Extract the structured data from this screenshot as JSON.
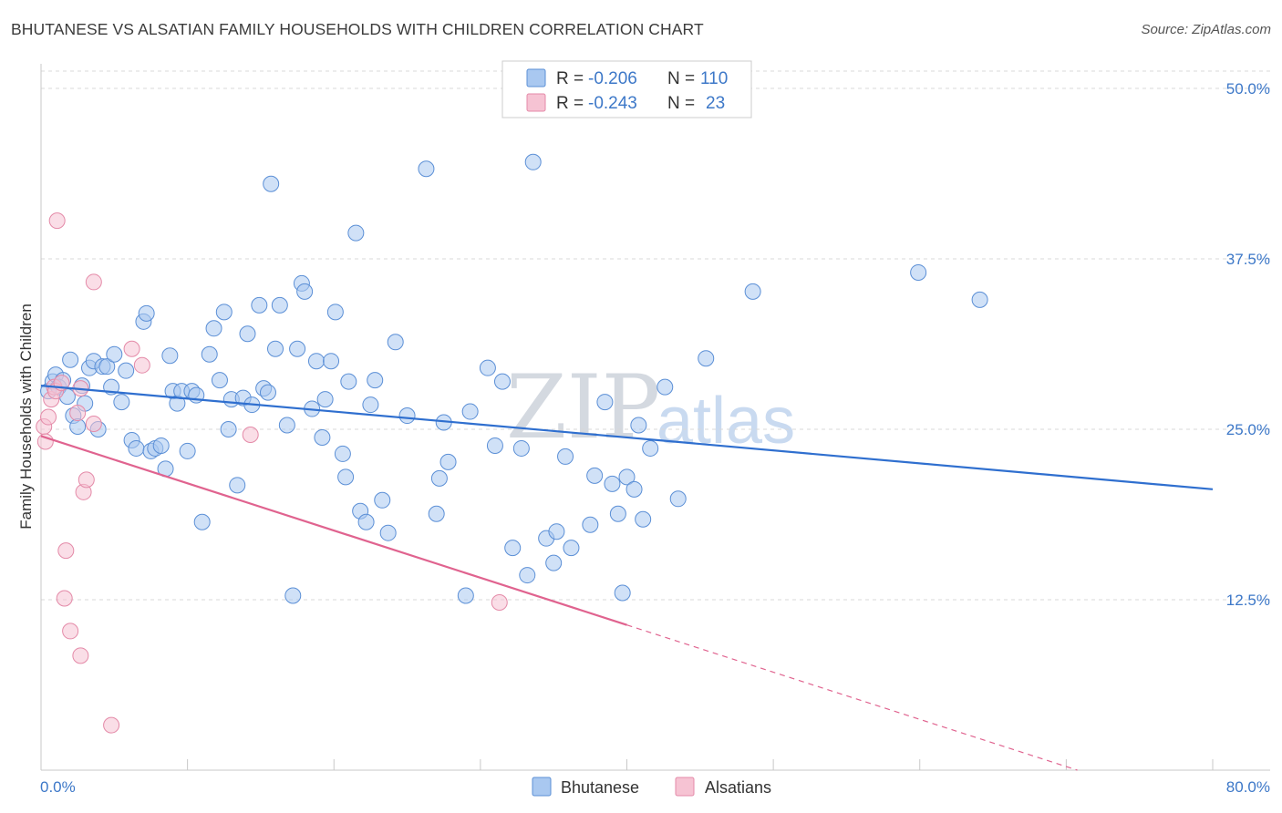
{
  "title": "BHUTANESE VS ALSATIAN FAMILY HOUSEHOLDS WITH CHILDREN CORRELATION CHART",
  "source": "Source: ZipAtlas.com",
  "watermark": {
    "zip": "ZIP",
    "atlas": "atlas"
  },
  "colors": {
    "blue_fill": "#a9c8f0",
    "blue_stroke": "#5b8fd6",
    "blue_line": "#2f6fcf",
    "pink_fill": "#f6c3d3",
    "pink_stroke": "#e48aa8",
    "pink_line": "#e0638f",
    "tick_text": "#3d78c8",
    "grid": "#d8d8d8"
  },
  "legend": {
    "r_label": "R =",
    "n_label": "N =",
    "rows": [
      {
        "r": "-0.206",
        "n": "110"
      },
      {
        "r": "-0.243",
        "n": "23"
      }
    ]
  },
  "chart_data": {
    "type": "scatter",
    "title": "BHUTANESE VS ALSATIAN FAMILY HOUSEHOLDS WITH CHILDREN CORRELATION CHART",
    "xlabel": "",
    "ylabel": "Family Households with Children",
    "xlim": [
      0,
      80
    ],
    "ylim": [
      0,
      52
    ],
    "x_tick_labels": [
      "0.0%",
      "80.0%"
    ],
    "y_ticks": [
      12.5,
      25.0,
      37.5,
      50.0
    ],
    "y_tick_labels": [
      "12.5%",
      "25.0%",
      "37.5%",
      "50.0%"
    ],
    "legend_position": "top-center",
    "series": [
      {
        "name": "Bhutanese",
        "R": -0.206,
        "N": 110,
        "trend": {
          "x0": 0,
          "y0": 28.2,
          "x1": 80,
          "y1": 20.6,
          "solid_until": 80
        },
        "points": [
          [
            0.5,
            27.8
          ],
          [
            0.8,
            28.5
          ],
          [
            1.0,
            29.0
          ],
          [
            1.2,
            28.1
          ],
          [
            1.5,
            28.6
          ],
          [
            1.8,
            27.4
          ],
          [
            2.0,
            30.1
          ],
          [
            2.2,
            26.0
          ],
          [
            2.5,
            25.2
          ],
          [
            2.8,
            28.2
          ],
          [
            3.0,
            26.9
          ],
          [
            3.3,
            29.5
          ],
          [
            3.6,
            30.0
          ],
          [
            3.9,
            25.0
          ],
          [
            4.2,
            29.6
          ],
          [
            4.5,
            29.6
          ],
          [
            4.8,
            28.1
          ],
          [
            5.0,
            30.5
          ],
          [
            5.5,
            27.0
          ],
          [
            5.8,
            29.3
          ],
          [
            6.2,
            24.2
          ],
          [
            6.5,
            23.6
          ],
          [
            7.0,
            32.9
          ],
          [
            7.2,
            33.5
          ],
          [
            7.5,
            23.4
          ],
          [
            7.8,
            23.6
          ],
          [
            8.2,
            23.8
          ],
          [
            8.5,
            22.1
          ],
          [
            8.8,
            30.4
          ],
          [
            9.0,
            27.8
          ],
          [
            9.3,
            26.9
          ],
          [
            9.6,
            27.8
          ],
          [
            10.0,
            23.4
          ],
          [
            10.3,
            27.8
          ],
          [
            10.6,
            27.5
          ],
          [
            11.0,
            18.2
          ],
          [
            11.5,
            30.5
          ],
          [
            11.8,
            32.4
          ],
          [
            12.2,
            28.6
          ],
          [
            12.5,
            33.6
          ],
          [
            12.8,
            25.0
          ],
          [
            13.0,
            27.2
          ],
          [
            13.4,
            20.9
          ],
          [
            13.8,
            27.3
          ],
          [
            14.1,
            32.0
          ],
          [
            14.4,
            26.8
          ],
          [
            14.9,
            34.1
          ],
          [
            15.2,
            28.0
          ],
          [
            15.5,
            27.7
          ],
          [
            15.7,
            43.0
          ],
          [
            16.0,
            30.9
          ],
          [
            16.3,
            34.1
          ],
          [
            16.8,
            25.3
          ],
          [
            17.2,
            12.8
          ],
          [
            17.5,
            30.9
          ],
          [
            17.8,
            35.7
          ],
          [
            18.0,
            35.1
          ],
          [
            18.5,
            26.5
          ],
          [
            18.8,
            30.0
          ],
          [
            19.2,
            24.4
          ],
          [
            19.4,
            27.2
          ],
          [
            19.8,
            30.0
          ],
          [
            20.1,
            33.6
          ],
          [
            20.6,
            23.2
          ],
          [
            20.8,
            21.5
          ],
          [
            21.0,
            28.5
          ],
          [
            21.5,
            39.4
          ],
          [
            21.8,
            19.0
          ],
          [
            22.2,
            18.2
          ],
          [
            22.5,
            26.8
          ],
          [
            22.8,
            28.6
          ],
          [
            23.3,
            19.8
          ],
          [
            23.7,
            17.4
          ],
          [
            24.2,
            31.4
          ],
          [
            25.0,
            26.0
          ],
          [
            26.3,
            44.1
          ],
          [
            27.0,
            18.8
          ],
          [
            27.2,
            21.4
          ],
          [
            27.5,
            25.5
          ],
          [
            27.8,
            22.6
          ],
          [
            29.0,
            12.8
          ],
          [
            29.3,
            26.3
          ],
          [
            30.5,
            29.5
          ],
          [
            31.0,
            23.8
          ],
          [
            31.5,
            28.5
          ],
          [
            32.2,
            16.3
          ],
          [
            32.8,
            23.6
          ],
          [
            33.2,
            14.3
          ],
          [
            33.6,
            44.6
          ],
          [
            34.5,
            17.0
          ],
          [
            35.0,
            15.2
          ],
          [
            35.2,
            17.5
          ],
          [
            35.8,
            23.0
          ],
          [
            36.2,
            16.3
          ],
          [
            37.5,
            18.0
          ],
          [
            37.8,
            21.6
          ],
          [
            38.5,
            27.0
          ],
          [
            39.0,
            21.0
          ],
          [
            39.4,
            18.8
          ],
          [
            39.7,
            13.0
          ],
          [
            40.0,
            21.5
          ],
          [
            40.5,
            20.6
          ],
          [
            40.8,
            25.3
          ],
          [
            41.1,
            18.4
          ],
          [
            41.6,
            23.6
          ],
          [
            42.6,
            28.1
          ],
          [
            43.5,
            19.9
          ],
          [
            45.4,
            30.2
          ],
          [
            48.6,
            35.1
          ],
          [
            59.9,
            36.5
          ],
          [
            64.1,
            34.5
          ]
        ]
      },
      {
        "name": "Alsatians",
        "R": -0.243,
        "N": 23,
        "trend": {
          "x0": 0,
          "y0": 24.5,
          "x1": 80,
          "y1": -3.2,
          "solid_until": 40
        },
        "points": [
          [
            0.2,
            25.2
          ],
          [
            0.3,
            24.1
          ],
          [
            0.5,
            25.9
          ],
          [
            0.7,
            27.2
          ],
          [
            0.9,
            28.1
          ],
          [
            1.0,
            27.8
          ],
          [
            1.1,
            40.3
          ],
          [
            1.4,
            28.4
          ],
          [
            1.7,
            16.1
          ],
          [
            1.6,
            12.6
          ],
          [
            2.0,
            10.2
          ],
          [
            2.5,
            26.2
          ],
          [
            2.7,
            28.0
          ],
          [
            2.7,
            8.4
          ],
          [
            2.9,
            20.4
          ],
          [
            3.1,
            21.3
          ],
          [
            3.6,
            35.8
          ],
          [
            3.6,
            25.4
          ],
          [
            4.8,
            3.3
          ],
          [
            6.2,
            30.9
          ],
          [
            6.9,
            29.7
          ],
          [
            14.3,
            24.6
          ],
          [
            31.3,
            12.3
          ]
        ]
      }
    ]
  },
  "bottom_legend": [
    {
      "label": "Bhutanese"
    },
    {
      "label": "Alsatians"
    }
  ]
}
